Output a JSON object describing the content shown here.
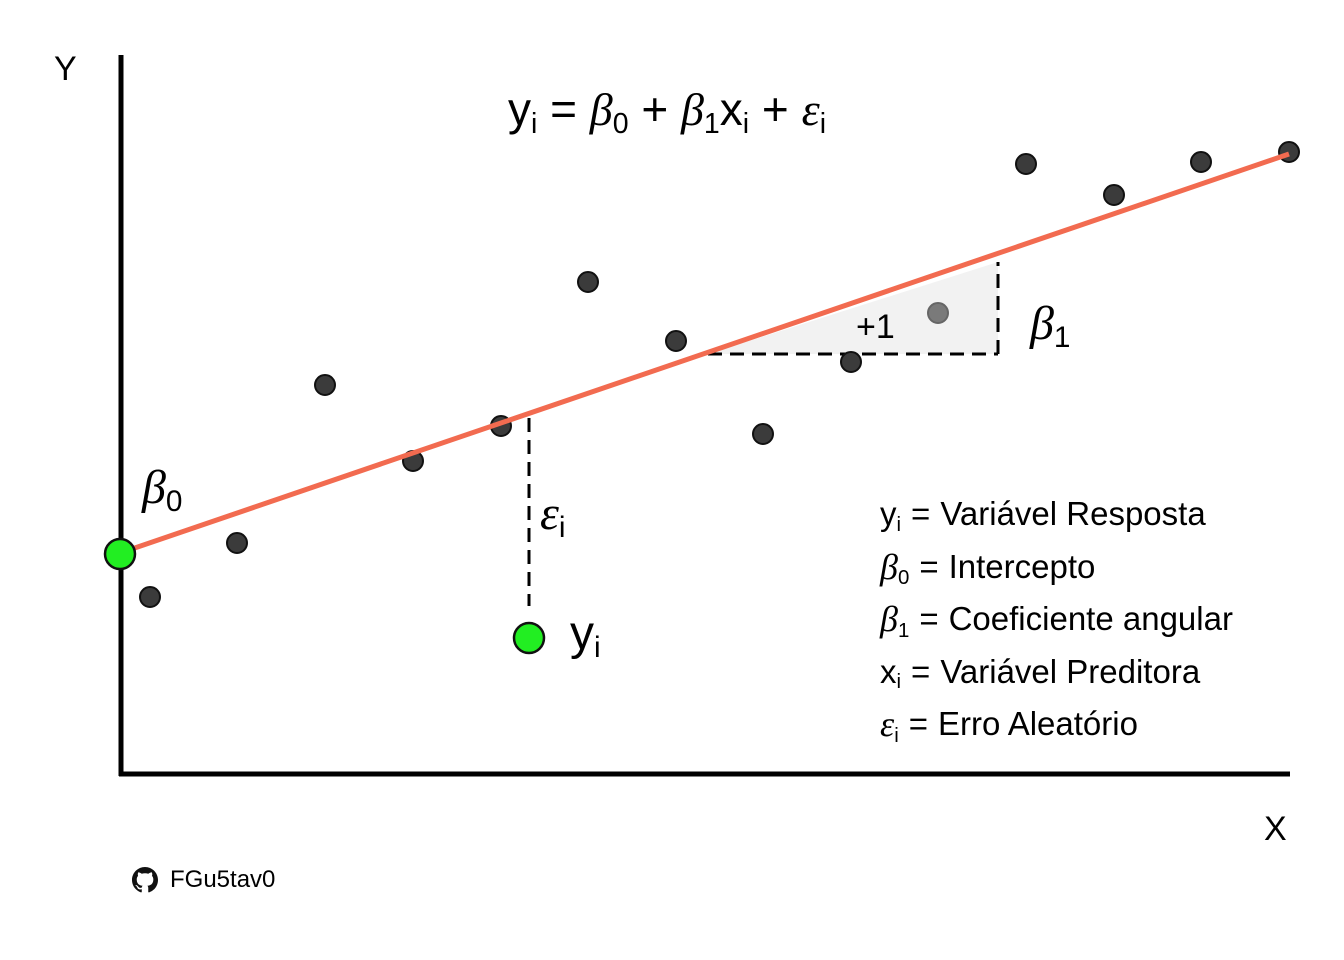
{
  "axes": {
    "x_label": "X",
    "y_label": "Y"
  },
  "formula": {
    "y": "y",
    "y_sub": "i",
    "equals": "=",
    "b0": "β",
    "b0_sub": "0",
    "plus1": "+",
    "b1": "β",
    "b1_sub": "1",
    "x": "x",
    "x_sub": "i",
    "plus2": "+",
    "e": "ε",
    "e_sub": "i"
  },
  "labels": {
    "beta0": "β",
    "beta0_sub": "0",
    "beta1": "β",
    "beta1_sub": "1",
    "eps": "ε",
    "eps_sub": "i",
    "yi": "y",
    "yi_sub": "i",
    "plus_one": "+1"
  },
  "legend": [
    {
      "sym": "y",
      "sub": "i",
      "greek": false,
      "eq": "=",
      "text": "Variável Resposta"
    },
    {
      "sym": "β",
      "sub": "0",
      "greek": true,
      "eq": "=",
      "text": "Intercepto"
    },
    {
      "sym": "β",
      "sub": "1",
      "greek": true,
      "eq": "=",
      "text": "Coeficiente angular"
    },
    {
      "sym": "x",
      "sub": "i",
      "greek": false,
      "eq": "=",
      "text": "Variável Preditora"
    },
    {
      "sym": "ε",
      "sub": "i",
      "greek": true,
      "eq": "=",
      "text": "Erro Aleatório"
    }
  ],
  "footer": {
    "handle": "FGu5tav0",
    "icon": "github-icon"
  },
  "colors": {
    "regression_line": "#f26b50",
    "point": "#3b3b3b",
    "highlight_point": "#22ee22",
    "slope_triangle": "#f2f2f2",
    "faded_point": "#7a7a7a"
  }
}
